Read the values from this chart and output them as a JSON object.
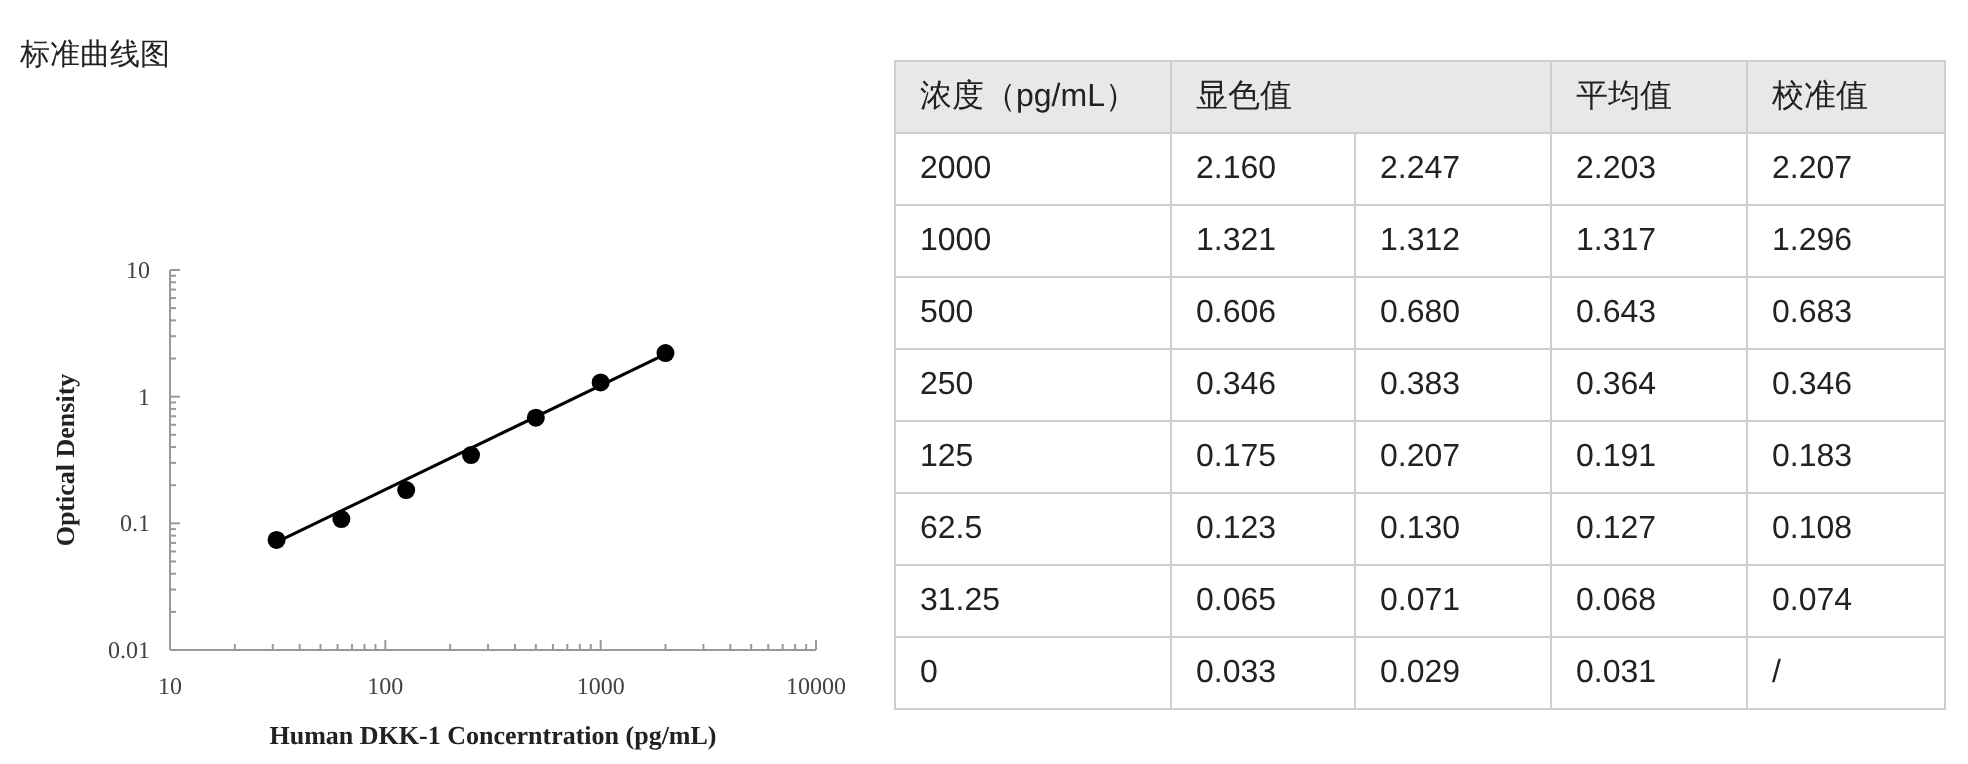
{
  "chart_data": [
    {
      "type": "scatter",
      "title": "标准曲线图",
      "xlabel": "Human DKK-1 Concerntration (pg/mL)",
      "ylabel": "Optical Density",
      "log": "xy",
      "xlim": [
        10,
        10000
      ],
      "xticks": [
        10,
        100,
        1000,
        10000
      ],
      "ylim": [
        0.01,
        10
      ],
      "yticks": [
        0.01,
        0.1,
        1,
        10
      ],
      "series": [
        {
          "marker": "circle",
          "color": "#000000",
          "x": [
            31.25,
            62.5,
            125,
            250,
            500,
            1000,
            2000
          ],
          "values": [
            0.074,
            0.108,
            0.183,
            0.346,
            0.683,
            1.296,
            2.207
          ]
        },
        {
          "type": "line",
          "color": "#000000",
          "x": [
            31.25,
            2000
          ],
          "values": [
            0.071,
            2.17
          ]
        }
      ]
    },
    {
      "type": "other",
      "categories": [
        "浓度（pg/mL）",
        "显色值",
        null,
        "平均值",
        "校准值"
      ],
      "cell_labels": [
        [
          "2000",
          "2.160",
          "2.247",
          "2.203",
          "2.207"
        ],
        [
          "1000",
          "1.321",
          "1.312",
          "1.317",
          "1.296"
        ],
        [
          "500",
          "0.606",
          "0.680",
          "0.643",
          "0.683"
        ],
        [
          "250",
          "0.346",
          "0.383",
          "0.364",
          "0.346"
        ],
        [
          "125",
          "0.175",
          "0.207",
          "0.191",
          "0.183"
        ],
        [
          "62.5",
          "0.123",
          "0.130",
          "0.127",
          "0.108"
        ],
        [
          "31.25",
          "0.065",
          "0.071",
          "0.068",
          "0.074"
        ],
        [
          "0",
          "0.033",
          "0.029",
          "0.031",
          "/"
        ]
      ]
    }
  ]
}
